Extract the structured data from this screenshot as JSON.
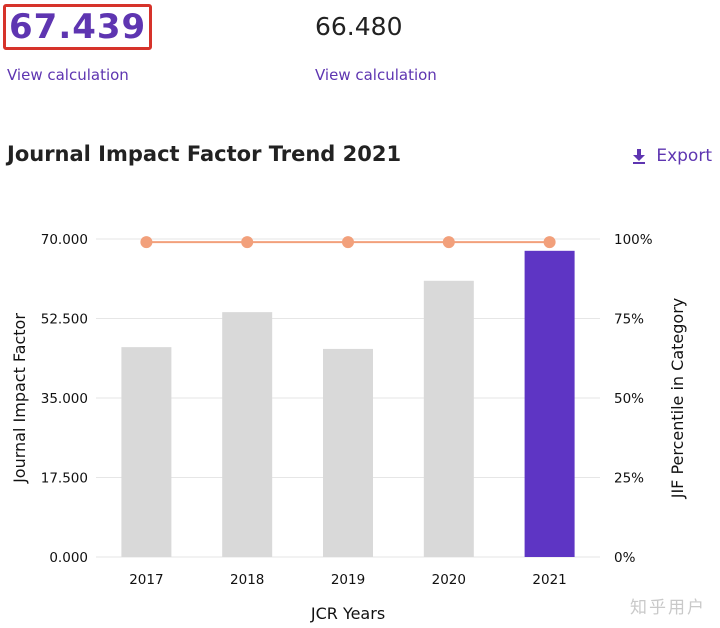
{
  "metrics": [
    {
      "value": "67.439",
      "link_label": "View calculation"
    },
    {
      "value": "66.480",
      "link_label": "View calculation"
    }
  ],
  "chart_section": {
    "title": "Journal Impact Factor Trend 2021",
    "export_label": "Export",
    "export_icon": "download-icon"
  },
  "watermark": "知乎用户",
  "colors": {
    "accent": "#5e35b1",
    "highlight_bar": "#5e35c4",
    "bar": "#d9d9d9",
    "percentile_line": "#f2a07b",
    "highlight_border": "#d6332a"
  },
  "chart_data": {
    "type": "bar",
    "title": "Journal Impact Factor Trend 2021",
    "categories": [
      "2017",
      "2018",
      "2019",
      "2020",
      "2021"
    ],
    "series": [
      {
        "name": "Journal Impact Factor",
        "type": "bar",
        "axis": "left",
        "values": [
          46.2,
          53.9,
          45.8,
          60.8,
          67.4
        ],
        "highlight_index": 4
      },
      {
        "name": "JIF Percentile in Category",
        "type": "line",
        "axis": "right",
        "values": [
          99,
          99,
          99,
          99,
          99
        ]
      }
    ],
    "xlabel": "JCR Years",
    "ylabel": "Journal Impact Factor",
    "y2label": "JIF Percentile in Category",
    "ylim": [
      0,
      70
    ],
    "y2lim": [
      0,
      100
    ],
    "yticks": [
      "0.000",
      "17.500",
      "35.000",
      "52.500",
      "70.000"
    ],
    "y2ticks": [
      "0%",
      "25%",
      "50%",
      "75%",
      "100%"
    ],
    "grid": true
  }
}
